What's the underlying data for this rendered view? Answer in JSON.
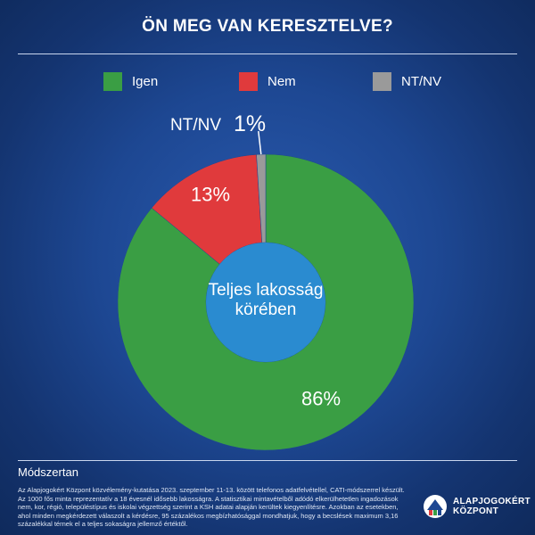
{
  "title": "ÖN MEG VAN KERESZTELVE?",
  "colors": {
    "igen": "#3a9e44",
    "nem": "#e03a3c",
    "ntnv": "#9a9a9a",
    "center": "#2a8bd0"
  },
  "legend": [
    {
      "label": "Igen",
      "color": "#3a9e44"
    },
    {
      "label": "Nem",
      "color": "#e03a3c"
    },
    {
      "label": "NT/NV",
      "color": "#9a9a9a"
    }
  ],
  "chart_data": {
    "type": "pie",
    "variant": "donut",
    "title": "ÖN MEG VAN KERESZTELVE?",
    "center_label": [
      "Teljes lakosság",
      "körében"
    ],
    "categories": [
      "Igen",
      "Nem",
      "NT/NV"
    ],
    "values": [
      86,
      13,
      1
    ],
    "labels": [
      "86%",
      "13%",
      "1%"
    ],
    "colors": [
      "#3a9e44",
      "#e03a3c",
      "#9a9a9a"
    ],
    "callout": "NT/NV"
  },
  "methodology": {
    "heading": "Módszertan",
    "text": "Az Alapjogokért Központ közvélemény-kutatása 2023. szeptember 11-13. között telefonos adatfelvétellel, CATI-módszerrel készült. Az 1000 fős minta reprezentatív a 18 évesnél idősebb lakosságra. A statisztikai mintavételből adódó elkerülhetetlen ingadozások nem, kor, régió, településtípus és iskolai végzettség szerint a KSH adatai alapján kerültek kiegyenlítésre. Azokban az esetekben, ahol minden megkérdezett válaszolt a kérdésre, 95 százalékos megbízhatósággal mondhatjuk, hogy a becslések maximum 3,16 százalékkal térnek el a teljes sokaságra jellemző értéktől."
  },
  "logo": {
    "line1": "ALAPJOGOKÉRT",
    "line2": "KÖZPONT"
  }
}
